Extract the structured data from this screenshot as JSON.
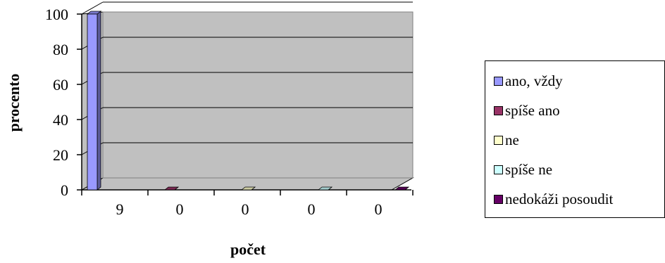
{
  "chart_data": {
    "type": "bar",
    "style": "3d-column",
    "categories": [
      "9",
      "0",
      "0",
      "0",
      "0"
    ],
    "series": [
      {
        "name": "ano, vždy",
        "values": [
          100,
          0,
          0,
          0,
          0
        ],
        "color": "#9999ff"
      },
      {
        "name": "spíše ano",
        "values": [
          0,
          0,
          0,
          0,
          0
        ],
        "color": "#993366"
      },
      {
        "name": "ne",
        "values": [
          0,
          0,
          0,
          0,
          0
        ],
        "color": "#ffffcc"
      },
      {
        "name": "spíše ne",
        "values": [
          0,
          0,
          0,
          0,
          0
        ],
        "color": "#ccffff"
      },
      {
        "name": "nedokáži posoudit",
        "values": [
          0,
          0,
          0,
          0,
          0
        ],
        "color": "#660066"
      }
    ],
    "xlabel": "počet",
    "ylabel": "procento",
    "ylim": [
      0,
      100
    ],
    "yticks": [
      "0",
      "20",
      "40",
      "60",
      "80",
      "100"
    ],
    "grid": true,
    "legend": "right",
    "plot_background": "#c0c0c0"
  }
}
